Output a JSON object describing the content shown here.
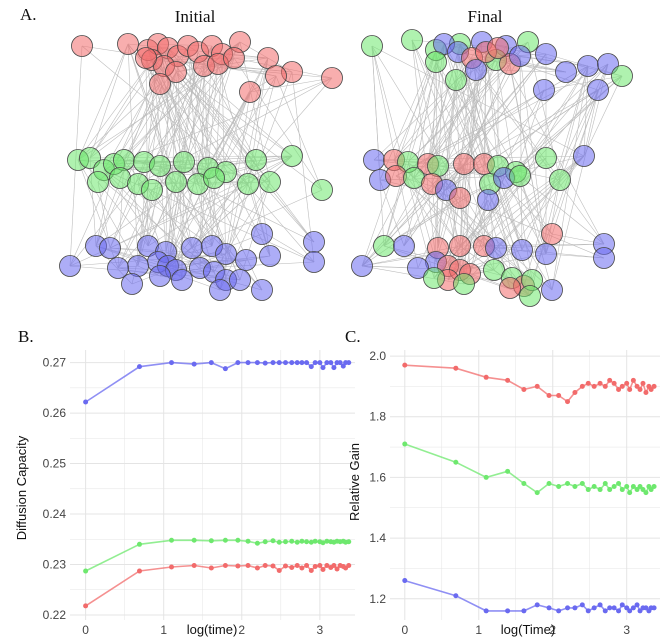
{
  "colors": {
    "group1": "#f26b6b",
    "group2": "#6ee86e",
    "group3": "#6a6af0",
    "edge": "#bdbdbd",
    "grid": "#e4e4e4"
  },
  "panel_a": {
    "label": "A.",
    "initial_title": "Initial",
    "final_title": "Final"
  },
  "chart_data": [
    {
      "panel": "B.",
      "type": "line",
      "title": "",
      "xlabel": "log(time)",
      "ylabel": "Diffusion Capacity",
      "xlim": [
        -0.2,
        3.45
      ],
      "ylim": [
        0.219,
        0.2725
      ],
      "xticks": [
        0,
        1,
        2,
        3
      ],
      "yticks": [
        0.22,
        0.23,
        0.24,
        0.25,
        0.26,
        0.27
      ],
      "ytick_labels": [
        "0.22",
        "0.23",
        "0.24",
        "0.25",
        "0.26",
        "0.27"
      ],
      "x": [
        0,
        0.69,
        1.1,
        1.39,
        1.61,
        1.79,
        1.95,
        2.08,
        2.2,
        2.3,
        2.4,
        2.48,
        2.56,
        2.64,
        2.71,
        2.77,
        2.83,
        2.89,
        2.94,
        3.0,
        3.04,
        3.09,
        3.14,
        3.18,
        3.22,
        3.26,
        3.3,
        3.33,
        3.37
      ],
      "series": [
        {
          "name": "blue",
          "color": "#6a6af0",
          "values": [
            0.2622,
            0.2692,
            0.27,
            0.2697,
            0.27,
            0.2688,
            0.27,
            0.27,
            0.27,
            0.2699,
            0.27,
            0.27,
            0.27,
            0.27,
            0.27,
            0.27,
            0.27,
            0.2692,
            0.27,
            0.27,
            0.269,
            0.27,
            0.27,
            0.269,
            0.27,
            0.27,
            0.2693,
            0.27,
            0.27
          ]
        },
        {
          "name": "green",
          "color": "#6ee86e",
          "values": [
            0.2287,
            0.234,
            0.2348,
            0.2348,
            0.2347,
            0.2348,
            0.2348,
            0.2346,
            0.2342,
            0.2345,
            0.2347,
            0.2344,
            0.2345,
            0.2346,
            0.2344,
            0.2346,
            0.2345,
            0.2344,
            0.2346,
            0.2345,
            0.2343,
            0.2346,
            0.2345,
            0.2344,
            0.2346,
            0.2345,
            0.2346,
            0.2344,
            0.2345
          ]
        },
        {
          "name": "red",
          "color": "#f26b6b",
          "values": [
            0.2218,
            0.2287,
            0.2295,
            0.2298,
            0.2293,
            0.2298,
            0.2297,
            0.2298,
            0.2293,
            0.2298,
            0.2297,
            0.2288,
            0.2297,
            0.2294,
            0.2298,
            0.2293,
            0.2298,
            0.2288,
            0.2296,
            0.2298,
            0.229,
            0.2298,
            0.2294,
            0.2298,
            0.2291,
            0.2298,
            0.2296,
            0.2293,
            0.2298
          ]
        }
      ]
    },
    {
      "panel": "C.",
      "type": "line",
      "title": "",
      "xlabel": "log(Time)",
      "ylabel": "Relative Gain",
      "xlim": [
        -0.2,
        3.45
      ],
      "ylim": [
        1.13,
        2.02
      ],
      "xticks": [
        0,
        1,
        2,
        3
      ],
      "yticks": [
        1.2,
        1.4,
        1.6,
        1.8,
        2.0
      ],
      "ytick_labels": [
        "1.2",
        "1.4",
        "1.6",
        "1.8",
        "2.0"
      ],
      "x": [
        0,
        0.69,
        1.1,
        1.39,
        1.61,
        1.79,
        1.95,
        2.08,
        2.2,
        2.3,
        2.4,
        2.48,
        2.56,
        2.64,
        2.71,
        2.77,
        2.83,
        2.89,
        2.94,
        3.0,
        3.04,
        3.09,
        3.14,
        3.18,
        3.22,
        3.26,
        3.3,
        3.33,
        3.37
      ],
      "series": [
        {
          "name": "red",
          "color": "#f26b6b",
          "values": [
            1.97,
            1.96,
            1.93,
            1.92,
            1.89,
            1.9,
            1.87,
            1.87,
            1.85,
            1.88,
            1.9,
            1.91,
            1.9,
            1.91,
            1.9,
            1.92,
            1.91,
            1.89,
            1.9,
            1.91,
            1.89,
            1.92,
            1.9,
            1.89,
            1.91,
            1.88,
            1.9,
            1.89,
            1.9
          ]
        },
        {
          "name": "green",
          "color": "#6ee86e",
          "values": [
            1.71,
            1.65,
            1.6,
            1.62,
            1.58,
            1.55,
            1.58,
            1.57,
            1.58,
            1.57,
            1.58,
            1.56,
            1.57,
            1.56,
            1.58,
            1.56,
            1.57,
            1.58,
            1.56,
            1.57,
            1.55,
            1.57,
            1.56,
            1.57,
            1.56,
            1.55,
            1.57,
            1.56,
            1.57
          ]
        },
        {
          "name": "blue",
          "color": "#6a6af0",
          "values": [
            1.26,
            1.21,
            1.16,
            1.16,
            1.16,
            1.18,
            1.17,
            1.16,
            1.17,
            1.17,
            1.18,
            1.16,
            1.17,
            1.18,
            1.16,
            1.17,
            1.17,
            1.16,
            1.18,
            1.17,
            1.16,
            1.17,
            1.18,
            1.16,
            1.17,
            1.17,
            1.16,
            1.17,
            1.17
          ]
        }
      ]
    }
  ]
}
